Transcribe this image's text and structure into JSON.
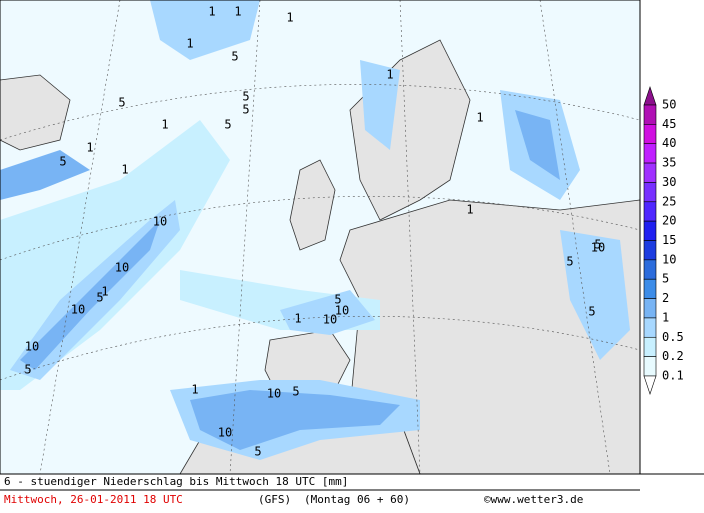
{
  "legend": {
    "levels": [
      {
        "label": "50",
        "color": "#8c108c"
      },
      {
        "label": "45",
        "color": "#b010b4"
      },
      {
        "label": "40",
        "color": "#d010e0"
      },
      {
        "label": "35",
        "color": "#c020ff"
      },
      {
        "label": "30",
        "color": "#a030ff"
      },
      {
        "label": "25",
        "color": "#7830ff"
      },
      {
        "label": "20",
        "color": "#5028ff"
      },
      {
        "label": "15",
        "color": "#2020f0"
      },
      {
        "label": "10",
        "color": "#1c3ce0"
      },
      {
        "label": "5",
        "color": "#2c6cdc"
      },
      {
        "label": "2",
        "color": "#3c8ce8"
      },
      {
        "label": "1",
        "color": "#78b4f4"
      },
      {
        "label": "0.5",
        "color": "#a8d8ff"
      },
      {
        "label": "0.2",
        "color": "#c8f0ff"
      },
      {
        "label": "0.1",
        "color": "#e8fbff"
      }
    ]
  },
  "map": {
    "labels": [
      "1",
      "1",
      "1",
      "5",
      "1",
      "5",
      "5",
      "1",
      "5",
      "5",
      "1",
      "5",
      "1",
      "10",
      "10",
      "1",
      "5",
      "10",
      "10",
      "5",
      "10",
      "1",
      "5",
      "10",
      "5",
      "5",
      "10",
      "5",
      "10",
      "5",
      "1",
      "10",
      "5",
      "1",
      "1",
      "1"
    ]
  },
  "footer": {
    "title": "6 - stuendiger Niederschlag bis Mittwoch 18 UTC [mm]",
    "date": "Mittwoch, 26-01-2011  18 UTC",
    "model": "(GFS)",
    "run": "(Montag 06 + 60)",
    "copyright": "©www.wetter3.de"
  }
}
